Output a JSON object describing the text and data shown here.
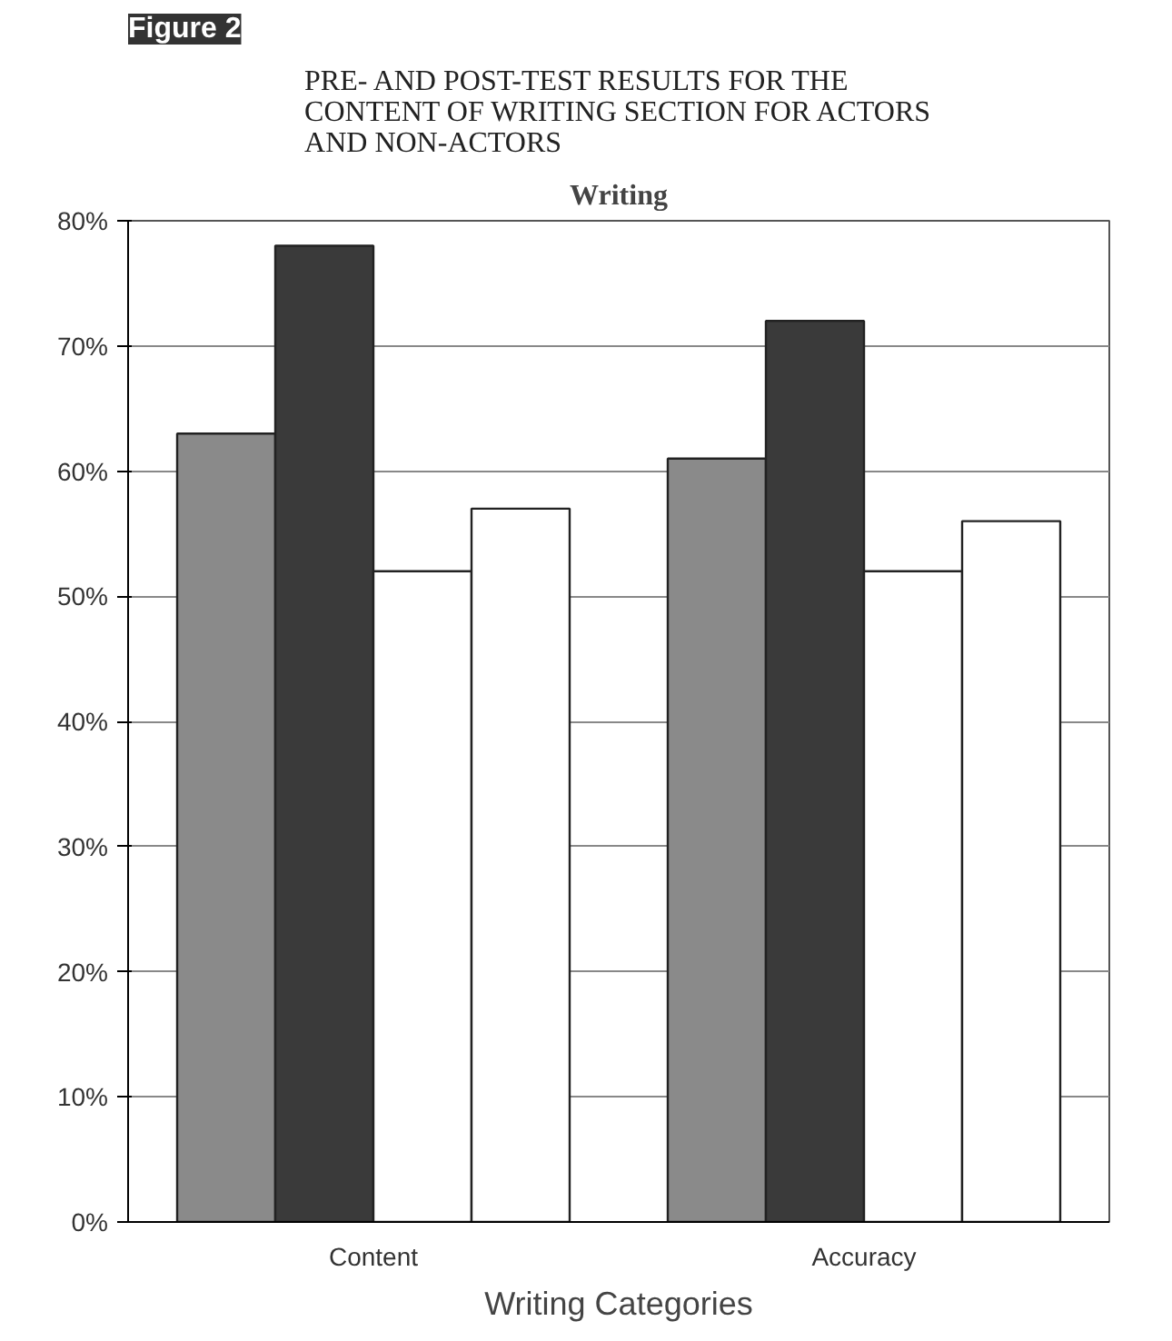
{
  "chart_data": {
    "type": "bar",
    "title": "PRE- AND POST-TEST RESULTS FOR THE CONTENT OF WRITING SECTION FOR ACTORS AND NON-ACTORS",
    "subtitle": "Writing",
    "xlabel": "Writing Categories",
    "annotations": [
      "Figure 2"
    ],
    "categories": [
      "Content",
      "Accuracy"
    ],
    "series": [
      {
        "color": "#8a8a8a",
        "values": [
          63,
          61
        ]
      },
      {
        "color": "#3a3a3a",
        "values": [
          78,
          72
        ]
      },
      {
        "color": "#ffffff",
        "values": [
          52,
          52
        ]
      },
      {
        "color": "#ffffff",
        "values": [
          57,
          56
        ]
      }
    ],
    "ylim": [
      0,
      80
    ],
    "yticks": [
      {
        "value": 0,
        "label": "0%"
      },
      {
        "value": 10,
        "label": "10%"
      },
      {
        "value": 20,
        "label": "20%"
      },
      {
        "value": 30,
        "label": "30%"
      },
      {
        "value": 40,
        "label": "40%"
      },
      {
        "value": 50,
        "label": "50%"
      },
      {
        "value": 60,
        "label": "60%"
      },
      {
        "value": 70,
        "label": "70%"
      },
      {
        "value": 80,
        "label": "80%"
      }
    ],
    "grid": "y"
  }
}
